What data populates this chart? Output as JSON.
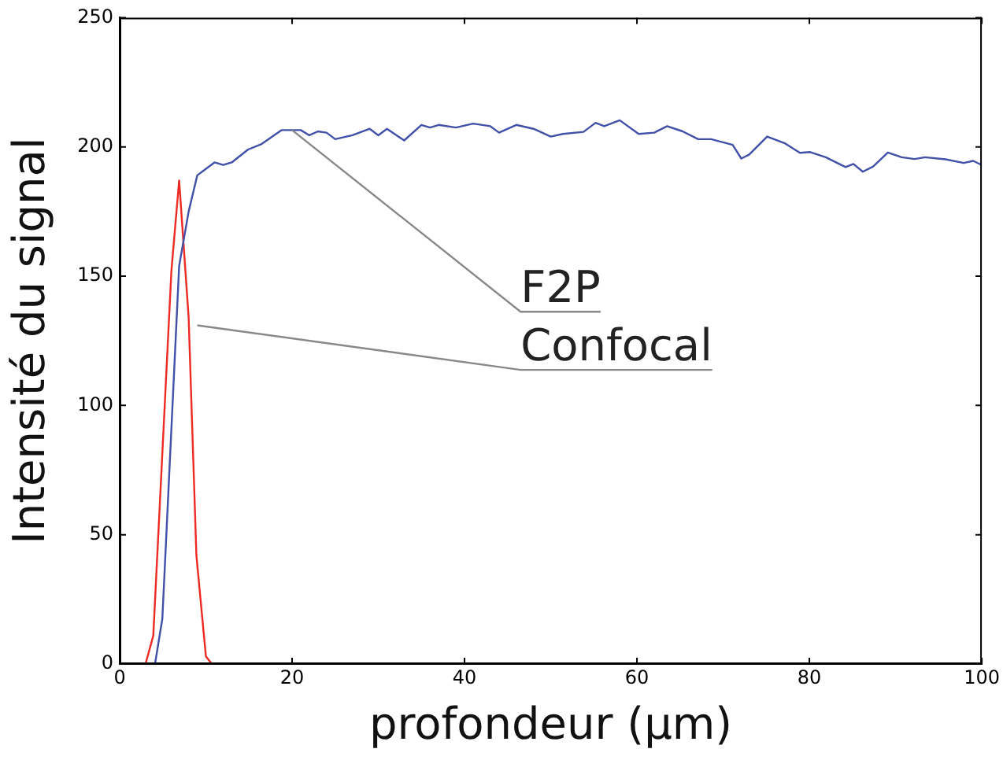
{
  "chart_data": {
    "type": "line",
    "xlabel": "profondeur (µm)",
    "ylabel": "Intensité du signal",
    "xlim": [
      0,
      100
    ],
    "xticks": [
      0,
      20,
      40,
      60,
      80,
      100
    ],
    "ylim": [
      0,
      250
    ],
    "yticks": [
      0,
      50,
      100,
      150,
      200,
      250
    ],
    "grid": false,
    "legend": false,
    "marker": "none",
    "line_style": "solid",
    "series": [
      {
        "color": "#4150a8",
        "x": [
          4.1,
          4.95,
          6.9,
          8.0,
          9.0,
          11,
          12,
          13,
          14.9,
          16.4,
          18.8,
          21,
          22,
          23,
          24,
          25,
          27,
          29,
          30,
          31,
          33,
          35,
          36,
          37,
          39,
          41,
          43,
          44,
          46,
          48,
          50,
          51.4,
          53.8,
          55.2,
          56.2,
          58,
          60.2,
          62,
          63.5,
          65.3,
          67.1,
          68.6,
          71.1,
          72.1,
          73,
          75.1,
          77.1,
          78.9,
          80.1,
          81.9,
          84.2,
          85.1,
          86.2,
          87.4,
          89.1,
          90.7,
          92.2,
          93.4,
          95.8,
          97.9,
          99,
          100
        ],
        "values": [
          0,
          17.5,
          154,
          175,
          189,
          194,
          193,
          194,
          199,
          201,
          206.5,
          206.5,
          204.5,
          206,
          205.5,
          203,
          204.5,
          207,
          204.5,
          207,
          202.5,
          208.5,
          207.5,
          208.5,
          207.5,
          209,
          208,
          205.5,
          208.5,
          207,
          204,
          205,
          205.8,
          209.3,
          208,
          210.3,
          205,
          205.5,
          208,
          206,
          203,
          203,
          200.8,
          195.5,
          197,
          204,
          201.5,
          197.7,
          198,
          196,
          192.2,
          193.4,
          190.4,
          192.4,
          197.8,
          196,
          195.3,
          196,
          195.2,
          193.8,
          194.6,
          193
        ]
      },
      {
        "color": "#ee2a24",
        "x": [
          3.0,
          3.9,
          6.0,
          6.9,
          8.0,
          8.9,
          10,
          10.7
        ],
        "values": [
          0,
          11,
          152,
          187,
          134,
          42,
          3,
          0
        ]
      }
    ],
    "annotations": [
      {
        "text": "F2P",
        "x": 20,
        "y": 206.5
      },
      {
        "text": "Confocal",
        "x": 9,
        "y": 131
      }
    ]
  }
}
